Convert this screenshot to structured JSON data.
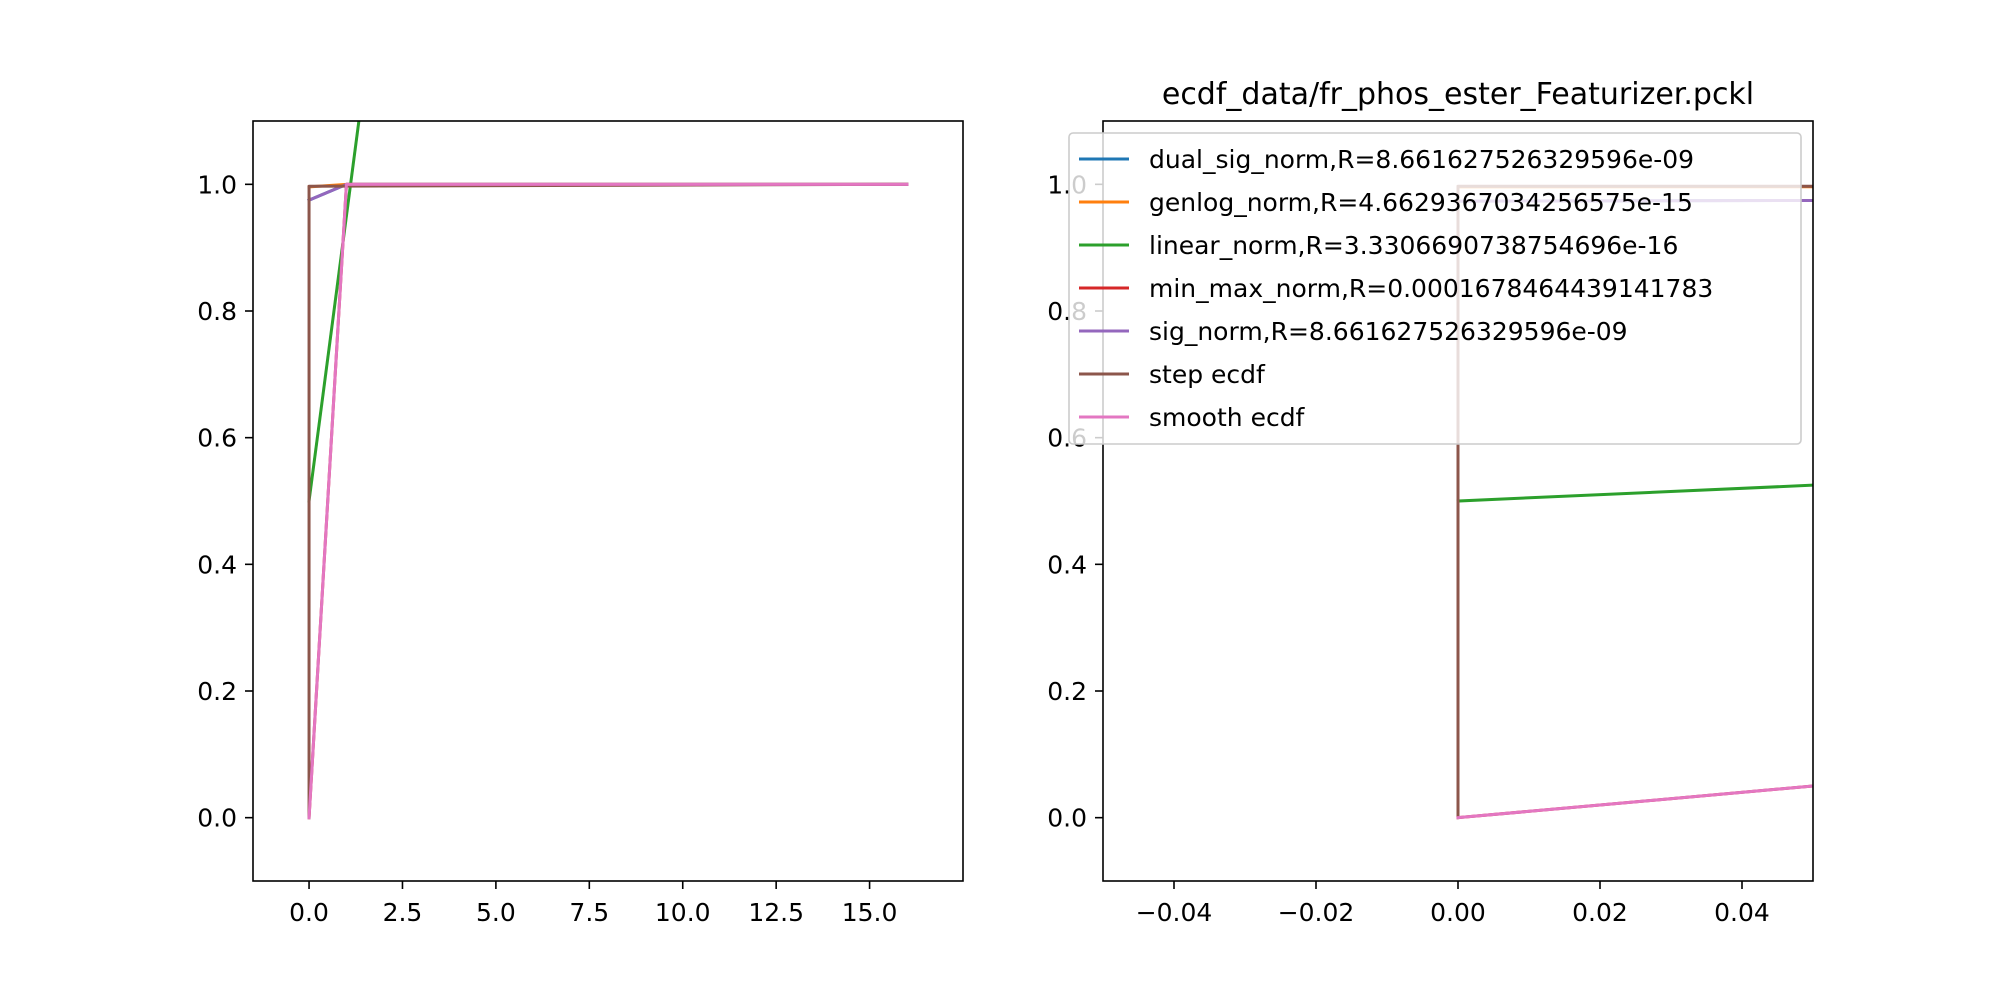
{
  "chart_data": [
    {
      "type": "line",
      "title": "",
      "xlabel": "",
      "ylabel": "",
      "xlim": [
        -1.5,
        17.5
      ],
      "ylim": [
        -0.1,
        1.1
      ],
      "xticks": [
        "0.0",
        "2.5",
        "5.0",
        "7.5",
        "10.0",
        "12.5",
        "15.0"
      ],
      "xtick_values": [
        0,
        2.5,
        5,
        7.5,
        10,
        12.5,
        15
      ],
      "yticks": [
        "0.0",
        "0.2",
        "0.4",
        "0.6",
        "0.8",
        "1.0"
      ],
      "ytick_values": [
        0,
        0.2,
        0.4,
        0.6,
        0.8,
        1.0
      ],
      "grid": false,
      "legend": false,
      "series": [
        {
          "name": "dual_sig_norm,R=8.661627526329596e-09",
          "color": "#1f77b4",
          "x": [
            0,
            1,
            16
          ],
          "y": [
            0.975,
            1.0,
            1.0
          ]
        },
        {
          "name": "genlog_norm,R=4.662936703425657 5e-15",
          "color": "#ff7f0e",
          "x": [
            0,
            1,
            16
          ],
          "y": [
            0.996,
            1.0,
            1.0
          ]
        },
        {
          "name": "linear_norm,R=3.3306690738754696e-16",
          "color": "#2ca02c",
          "x": [
            0,
            1.4
          ],
          "y": [
            0.5,
            1.13
          ]
        },
        {
          "name": "min_max_norm,R=0.0001678464439141783",
          "color": "#d62728",
          "x": [
            0,
            1,
            16
          ],
          "y": [
            0.0,
            1.0,
            1.0
          ]
        },
        {
          "name": "sig_norm,R=8.661627526329596e-09",
          "color": "#9467bd",
          "x": [
            0,
            1,
            16
          ],
          "y": [
            0.975,
            1.0,
            1.0
          ]
        },
        {
          "name": "step ecdf",
          "color": "#8c564b",
          "x": [
            0,
            0,
            16
          ],
          "y": [
            0.0,
            0.997,
            1.0
          ]
        },
        {
          "name": "smooth ecdf",
          "color": "#e377c2",
          "x": [
            0,
            1,
            16
          ],
          "y": [
            0.0,
            1.0,
            1.0
          ]
        }
      ]
    },
    {
      "type": "line",
      "title": "ecdf_data/fr_phos_ester_Featurizer.pckl",
      "xlabel": "",
      "ylabel": "",
      "xlim": [
        -0.05,
        0.05
      ],
      "ylim": [
        -0.1,
        1.1
      ],
      "xticks": [
        "−0.04",
        "−0.02",
        "0.00",
        "0.02",
        "0.04"
      ],
      "xtick_values": [
        -0.04,
        -0.02,
        0,
        0.02,
        0.04
      ],
      "yticks": [
        "0.0",
        "0.2",
        "0.4",
        "0.6",
        "0.8",
        "1.0"
      ],
      "ytick_values": [
        0,
        0.2,
        0.4,
        0.6,
        0.8,
        1.0
      ],
      "grid": false,
      "legend": "upper right",
      "series": [
        {
          "name": "dual_sig_norm,R=8.661627526329596e-09",
          "color": "#1f77b4",
          "x": [
            0,
            0.05
          ],
          "y": [
            0.9735,
            0.9745
          ]
        },
        {
          "name": "genlog_norm,R=4.6629367034256575e-15",
          "color": "#ff7f0e",
          "x": [
            0,
            0.05
          ],
          "y": [
            0.996,
            0.9962
          ]
        },
        {
          "name": "linear_norm,R=3.3306690738754696e-16",
          "color": "#2ca02c",
          "x": [
            0,
            0.05
          ],
          "y": [
            0.5,
            0.525
          ]
        },
        {
          "name": "min_max_norm,R=0.0001678464439141783",
          "color": "#d62728",
          "x": [
            0,
            0.05
          ],
          "y": [
            0.0,
            0.05
          ]
        },
        {
          "name": "sig_norm,R=8.661627526329596e-09",
          "color": "#9467bd",
          "x": [
            0,
            0.05
          ],
          "y": [
            0.9735,
            0.9745
          ]
        },
        {
          "name": "step ecdf",
          "color": "#8c564b",
          "x": [
            0,
            0,
            0.05
          ],
          "y": [
            0.0,
            0.997,
            0.997
          ]
        },
        {
          "name": "smooth ecdf",
          "color": "#e377c2",
          "x": [
            0,
            0.05
          ],
          "y": [
            0.0,
            0.05
          ]
        }
      ]
    }
  ]
}
